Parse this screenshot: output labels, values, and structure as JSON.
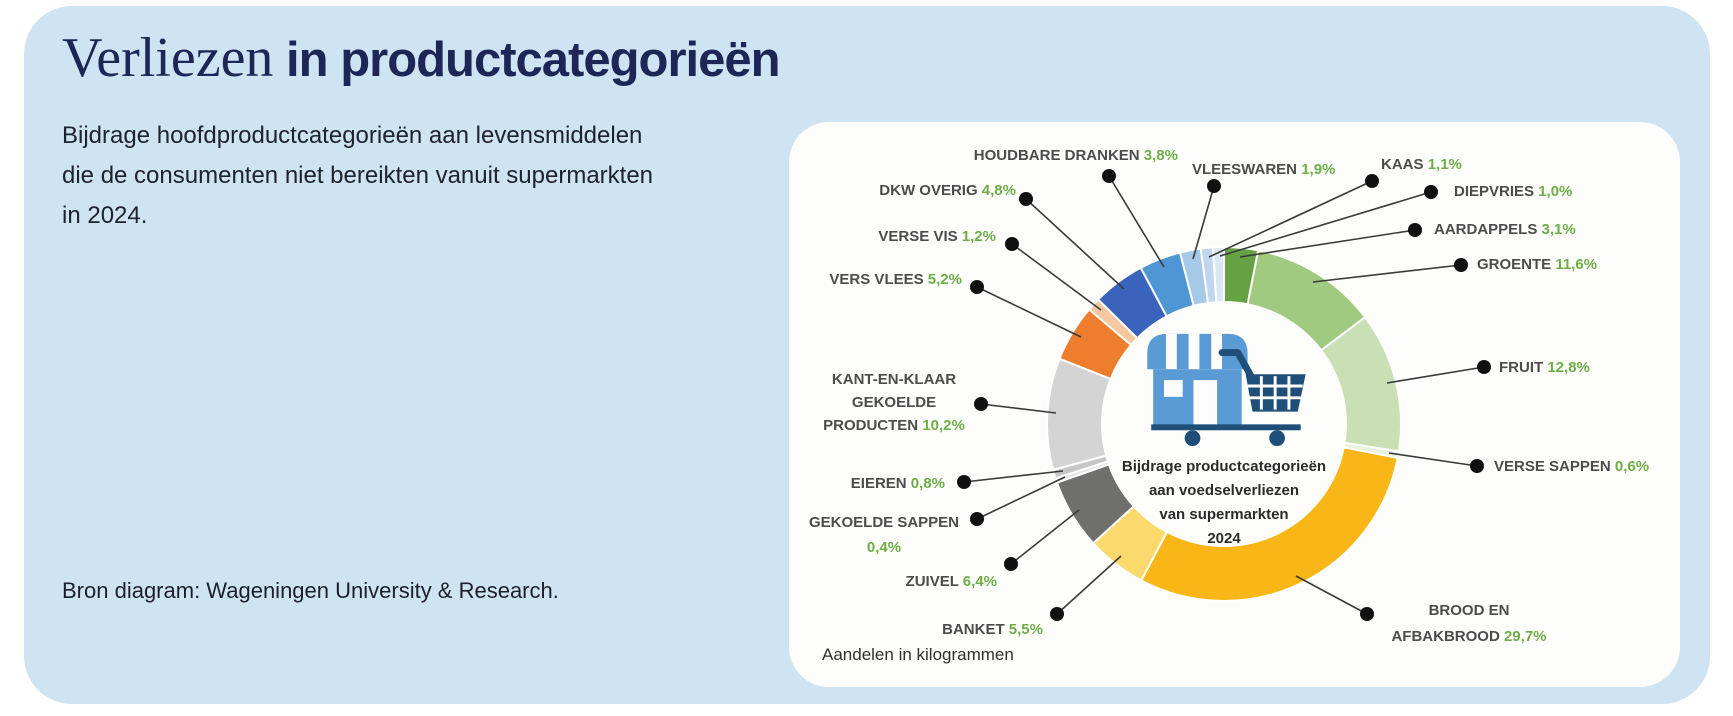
{
  "page": {
    "title_serif": "Verliezen",
    "title_bold": " in productcategorieën",
    "subtitle": "Bijdrage hoofdproductcategorieën aan levensmiddelen die de consumenten niet bereikten vanuit supermarkten in 2024.",
    "source": "Bron diagram: Wageningen University & Research."
  },
  "chart_data": {
    "type": "pie",
    "variant": "donut",
    "title": "Bijdrage productcategorieën aan voedselverliezen van supermarkten 2024",
    "center_title_lines": [
      "Bijdrage productcategorieën",
      "aan voedselverliezen",
      "van supermarkten",
      "2024"
    ],
    "footnote": "Aandelen in kilogrammen",
    "start_angle_deg": 0,
    "direction": "clockwise",
    "center_icon": "storefront-with-shopping-cart-icon",
    "segments": [
      {
        "label": "AARDAPPELS",
        "value": 3.1,
        "display": "3,1%",
        "color": "#64a244"
      },
      {
        "label": "GROENTE",
        "value": 11.6,
        "display": "11,6%",
        "color": "#9fca7f"
      },
      {
        "label": "FRUIT",
        "value": 12.8,
        "display": "12,8%",
        "color": "#c9dfb4"
      },
      {
        "label": "VERSE SAPPEN",
        "value": 0.6,
        "display": "0,6%",
        "color": "#e9f1dc"
      },
      {
        "label": "BROOD EN AFBAKBROOD",
        "value": 29.7,
        "display": "29,7%",
        "color": "#f8b717",
        "label_lines": [
          "BROOD EN",
          "AFBAKBROOD"
        ]
      },
      {
        "label": "BANKET",
        "value": 5.5,
        "display": "5,5%",
        "color": "#fbd96d"
      },
      {
        "label": "ZUIVEL",
        "value": 6.4,
        "display": "6,4%",
        "color": "#6f6f6e"
      },
      {
        "label": "GEKOELDE SAPPEN",
        "value": 0.4,
        "display": "0,4%",
        "color": "#e2e2e2"
      },
      {
        "label": "EIEREN",
        "value": 0.8,
        "display": "0,8%",
        "color": "#c6c6c6"
      },
      {
        "label": "KANT-EN-KLAAR GEKOELDE PRODUCTEN",
        "value": 10.2,
        "display": "10,2%",
        "color": "#d4d4d4",
        "label_lines": [
          "KANT-EN-KLAAR",
          "GEKOELDE",
          "PRODUCTEN"
        ]
      },
      {
        "label": "VERS VLEES",
        "value": 5.2,
        "display": "5,2%",
        "color": "#ee7d2e"
      },
      {
        "label": "VERSE VIS",
        "value": 1.2,
        "display": "1,2%",
        "color": "#f6c69e"
      },
      {
        "label": "DKW OVERIG",
        "value": 4.8,
        "display": "4,8%",
        "color": "#3a64bc"
      },
      {
        "label": "HOUDBARE DRANKEN",
        "value": 3.8,
        "display": "3,8%",
        "color": "#4f97d4"
      },
      {
        "label": "VLEESWAREN",
        "value": 1.9,
        "display": "1,9%",
        "color": "#a6c9e8"
      },
      {
        "label": "KAAS",
        "value": 1.1,
        "display": "1,1%",
        "color": "#bfd6ee"
      },
      {
        "label": "DIEPVRIES",
        "value": 1.0,
        "display": "1,0%",
        "color": "#dbe7f5"
      }
    ],
    "colors": {
      "card_background": "#cfe4f3",
      "panel_background": "#fdfdfc",
      "label_text": "#4c4c4c",
      "percent_text": "#6fae47",
      "leader_line": "#3a3a3a",
      "dot": "#111111",
      "title_navy": "#1c2657",
      "store_blue": "#5b9bd5",
      "cart_navy": "#1f4e79"
    }
  }
}
